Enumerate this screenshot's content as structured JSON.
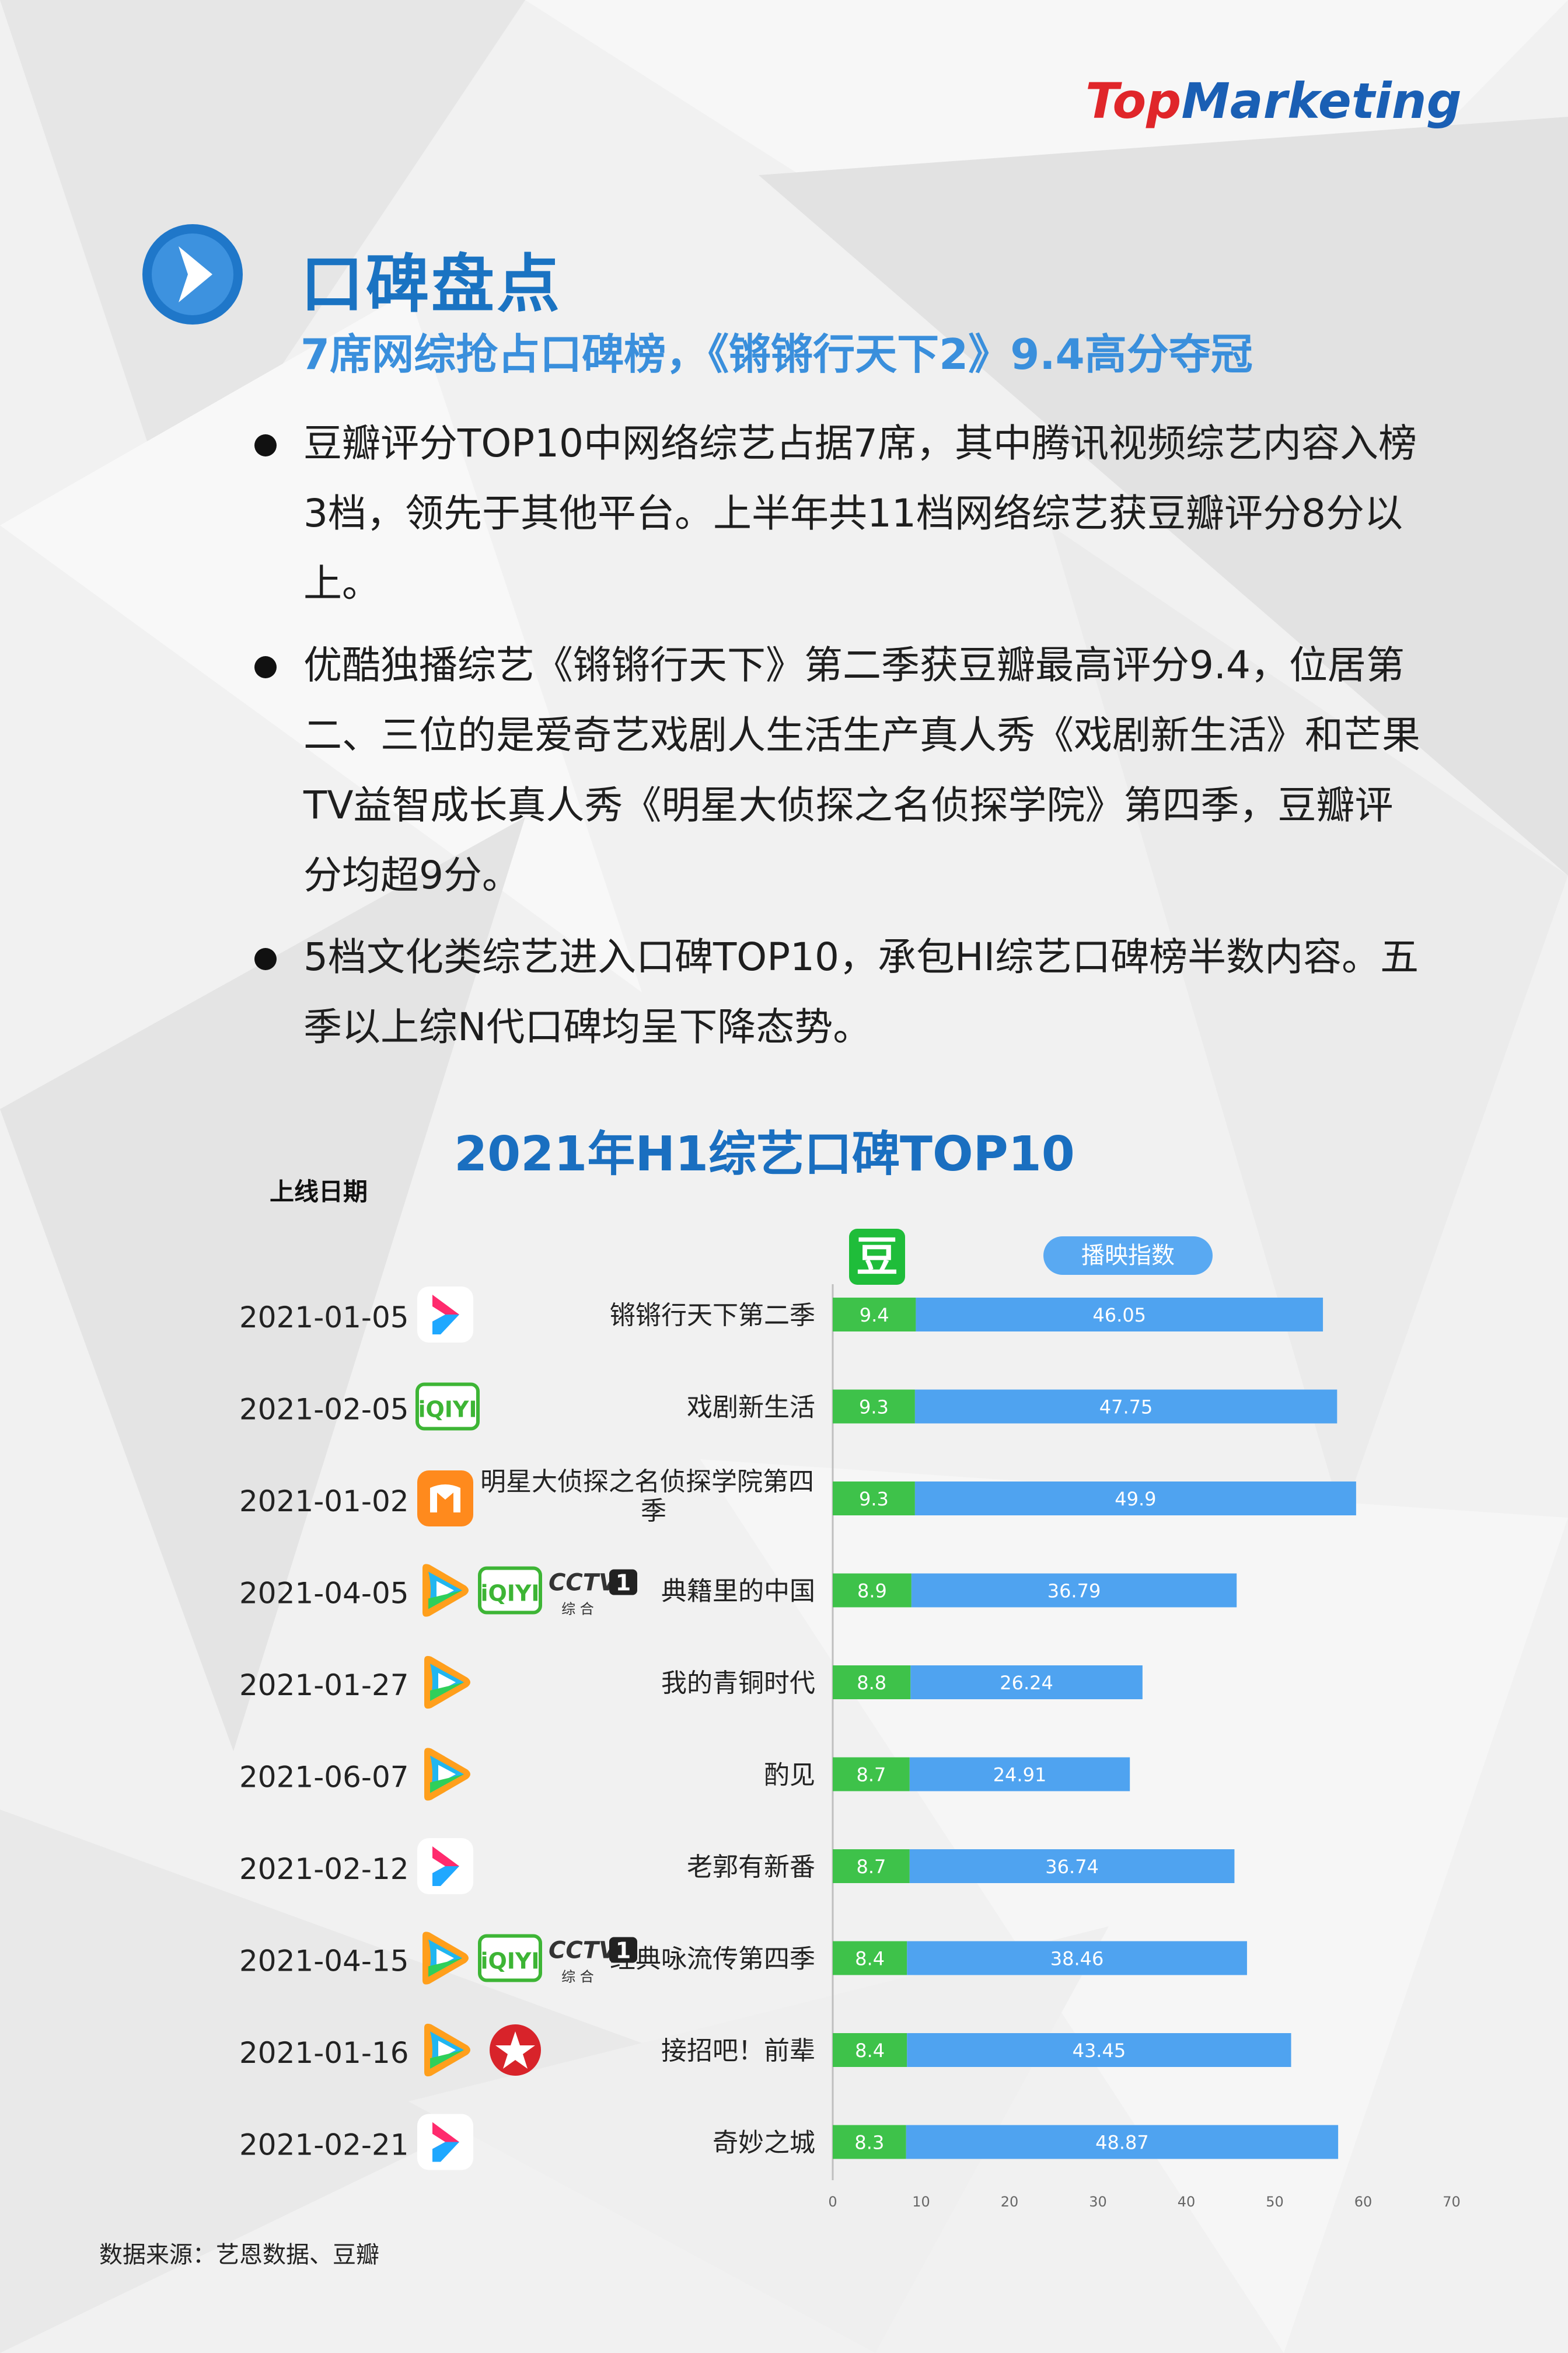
{
  "brand": {
    "logo_text": "TopMarketing"
  },
  "section": {
    "title": "口碑盘点",
    "subtitle": "7席网综抢占口碑榜，《锵锵行天下2》9.4高分夺冠"
  },
  "bullets": [
    {
      "lines": [
        "豆瓣评分TOP10中网络综艺占据7席，其中腾讯视频综艺内容入榜",
        "3档，领先于其他平台。上半年共11档网络综艺获豆瓣评分8分以",
        "上。"
      ]
    },
    {
      "lines": [
        "优酷独播综艺《锵锵行天下》第二季获豆瓣最高评分9.4，位居第",
        "二、三位的是爱奇艺戏剧人生活生产真人秀《戏剧新生活》和芒果",
        "TV益智成长真人秀《明星大侦探之名侦探学院》第四季，豆瓣评",
        "分均超9分。"
      ]
    },
    {
      "lines": [
        "5档文化类综艺进入口碑TOP10，承包HI综艺口碑榜半数内容。五",
        "季以上综N代口碑均呈下降态势。"
      ]
    }
  ],
  "colors": {
    "accent": "#1a73c2",
    "douban_green": "#3ec24a",
    "play_blue": "#4fa3f0"
  },
  "chart_data": {
    "type": "bar",
    "title": "2021年H1综艺口碑TOP10",
    "date_header": "上线日期",
    "legend": {
      "douban_icon_label": "豆",
      "play_index_label": "播映指数"
    },
    "xlim": [
      0,
      70
    ],
    "xticks": [
      0,
      10,
      20,
      30,
      40,
      50,
      60,
      70
    ],
    "shows": [
      {
        "date": "2021-01-05",
        "name": "锵锵行天下第二季",
        "douban": 9.4,
        "play_index": 46.05,
        "platforms": [
          "youku"
        ]
      },
      {
        "date": "2021-02-05",
        "name": "戏剧新生活",
        "douban": 9.3,
        "play_index": 47.75,
        "platforms": [
          "iqiyi"
        ]
      },
      {
        "date": "2021-01-02",
        "name_lines": [
          "明星大侦探之名侦探学院第四",
          "季"
        ],
        "douban": 9.3,
        "play_index": 49.9,
        "platforms": [
          "mgtv"
        ]
      },
      {
        "date": "2021-04-05",
        "name": "典籍里的中国",
        "douban": 8.9,
        "play_index": 36.79,
        "platforms": [
          "tencent",
          "iqiyi",
          "cctv1"
        ]
      },
      {
        "date": "2021-01-27",
        "name": "我的青铜时代",
        "douban": 8.8,
        "play_index": 26.24,
        "platforms": [
          "tencent"
        ]
      },
      {
        "date": "2021-06-07",
        "name": "酌见",
        "douban": 8.7,
        "play_index": 24.91,
        "platforms": [
          "tencent"
        ]
      },
      {
        "date": "2021-02-12",
        "name": "老郭有新番",
        "douban": 8.7,
        "play_index": 36.74,
        "platforms": [
          "youku"
        ]
      },
      {
        "date": "2021-04-15",
        "name": "经典咏流传第四季",
        "douban": 8.4,
        "play_index": 38.46,
        "platforms": [
          "tencent",
          "iqiyi",
          "cctv1"
        ]
      },
      {
        "date": "2021-01-16",
        "name": "接招吧！前辈",
        "douban": 8.4,
        "play_index": 43.45,
        "platforms": [
          "tencent",
          "star"
        ]
      },
      {
        "date": "2021-02-21",
        "name": "奇妙之城",
        "douban": 8.3,
        "play_index": 48.87,
        "platforms": [
          "youku"
        ]
      }
    ],
    "platform_icons": {
      "youku": "youku-icon",
      "iqiyi": "iqiyi-icon",
      "mgtv": "mgtv-icon",
      "tencent": "tencent-video-icon",
      "cctv1": "cctv1-icon",
      "star": "star-channel-icon"
    },
    "cctv_text": "CCTV",
    "cctv_num": "1",
    "cctv_sub": "综 合",
    "iqiyi_text": "iQIYI"
  },
  "footer": {
    "source": "数据来源：艺恩数据、豆瓣"
  }
}
